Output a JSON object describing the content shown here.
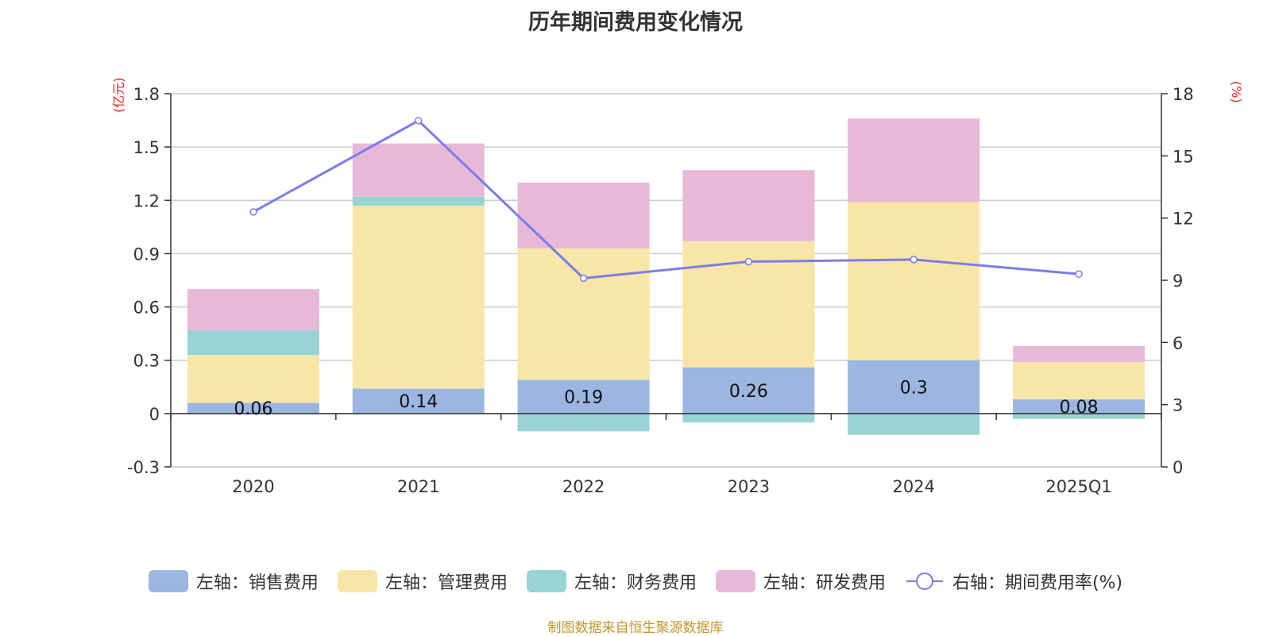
{
  "title": "历年期间费用变化情况",
  "source": "制图数据来自恒生聚源数据库",
  "chart_data": {
    "type": "bar",
    "stacked": true,
    "title": "历年期间费用变化情况",
    "categories": [
      "2020",
      "2021",
      "2022",
      "2023",
      "2024",
      "2025Q1"
    ],
    "left_axis": {
      "unit": "(亿元)",
      "min": -0.3,
      "max": 1.8,
      "ticks": [
        "-0.3",
        "0",
        "0.3",
        "0.6",
        "0.9",
        "1.2",
        "1.5",
        "1.8"
      ]
    },
    "right_axis": {
      "unit": "(%)",
      "min": 0,
      "max": 18,
      "ticks": [
        "0",
        "3",
        "6",
        "9",
        "12",
        "15",
        "18"
      ]
    },
    "series": [
      {
        "name": "左轴：销售费用",
        "axis": "left",
        "color": "#9bb6e0",
        "values": [
          0.06,
          0.14,
          0.19,
          0.26,
          0.3,
          0.08
        ],
        "labels": [
          "0.06",
          "0.14",
          "0.19",
          "0.26",
          "0.3",
          "0.08"
        ]
      },
      {
        "name": "左轴：管理费用",
        "axis": "left",
        "color": "#f8e6a8",
        "values": [
          0.27,
          1.03,
          0.74,
          0.71,
          0.89,
          0.21
        ]
      },
      {
        "name": "左轴：财务费用",
        "axis": "left",
        "color": "#98d4d4",
        "values": [
          0.14,
          0.05,
          -0.1,
          -0.05,
          -0.12,
          -0.03
        ]
      },
      {
        "name": "左轴：研发费用",
        "axis": "left",
        "color": "#e8b8d8",
        "values": [
          0.23,
          0.3,
          0.37,
          0.4,
          0.47,
          0.09
        ]
      },
      {
        "name": "右轴：期间费用率(%)",
        "axis": "right",
        "type": "line",
        "color": "#7b7de8",
        "values": [
          12.3,
          16.7,
          9.1,
          9.9,
          10.0,
          9.3
        ]
      }
    ],
    "legend_position": "bottom",
    "grid": true
  }
}
